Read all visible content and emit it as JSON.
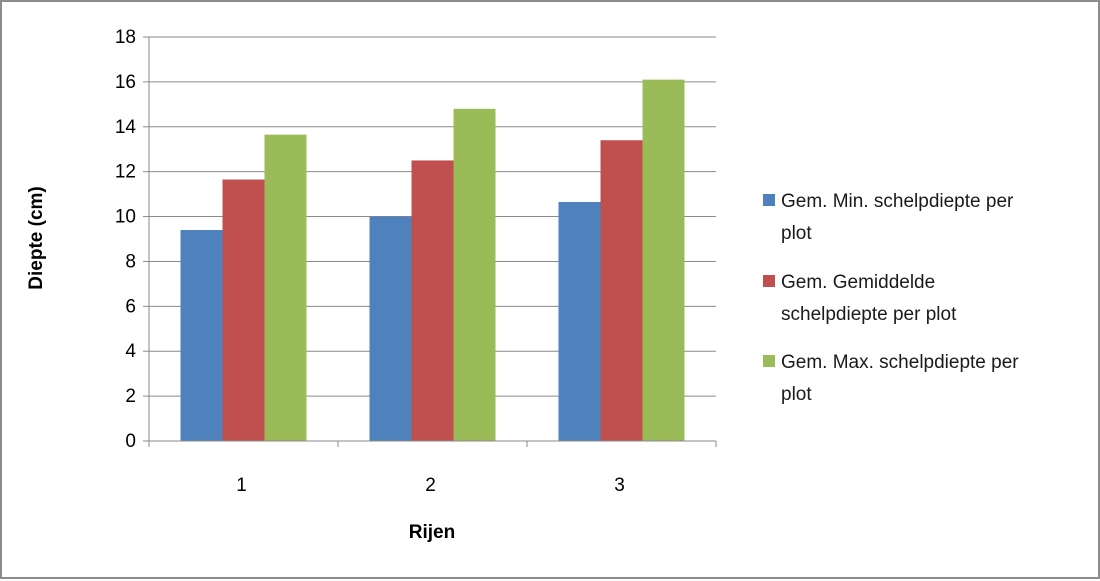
{
  "chart_data": {
    "type": "bar",
    "title": "",
    "xlabel": "Rijen",
    "ylabel": "Diepte (cm)",
    "ylim": [
      0,
      18
    ],
    "yticks": [
      0,
      2,
      4,
      6,
      8,
      10,
      12,
      14,
      16,
      18
    ],
    "categories": [
      "1",
      "2",
      "3"
    ],
    "grid": true,
    "legend_position": "right",
    "series": [
      {
        "name": "Gem. Min. schelpdiepte per plot",
        "color": "#4f81bd",
        "values": [
          9.4,
          10.0,
          10.65
        ]
      },
      {
        "name": "Gem. Gemiddelde schelpdiepte per plot",
        "color": "#c0504d",
        "values": [
          11.65,
          12.5,
          13.4
        ]
      },
      {
        "name": "Gem. Max. schelpdiepte per plot",
        "color": "#9bbb59",
        "values": [
          13.65,
          14.8,
          16.1
        ]
      }
    ]
  }
}
